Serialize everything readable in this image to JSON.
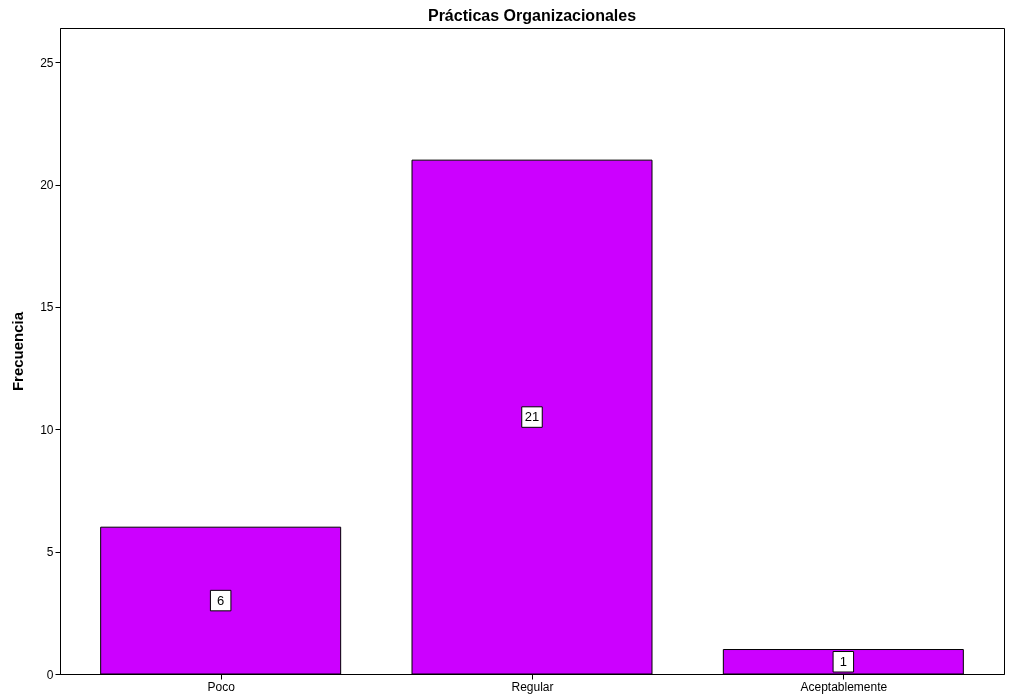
{
  "chart_data": {
    "type": "bar",
    "title": "Prácticas Organizacionales",
    "ylabel": "Frecuencia",
    "categories": [
      "Poco",
      "Regular",
      "Aceptablemente"
    ],
    "values": [
      6,
      21,
      1
    ],
    "color": "#cc00ff",
    "ylim": [
      0,
      26.4
    ],
    "yticks": [
      0,
      5,
      10,
      15,
      20,
      25
    ],
    "grid": false,
    "data_labels": true
  }
}
